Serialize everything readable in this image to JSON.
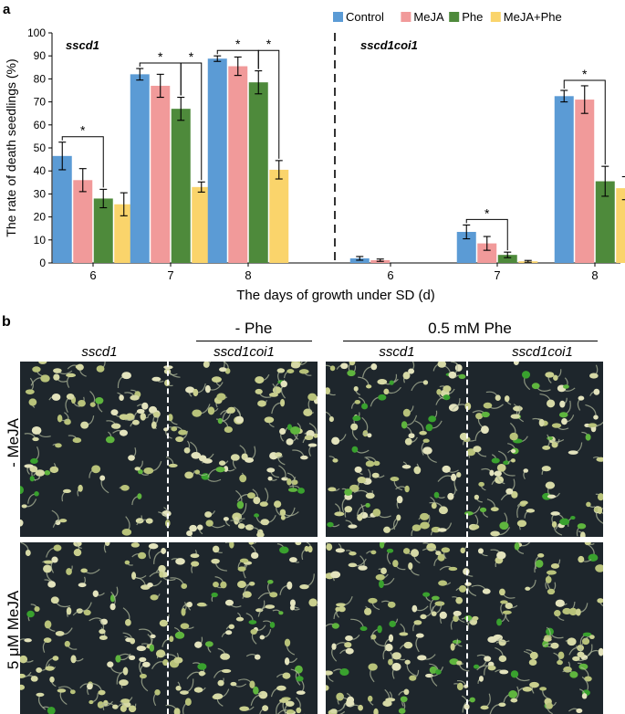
{
  "panels": {
    "a": "a",
    "b": "b"
  },
  "chart_data": {
    "type": "bar",
    "ylabel": "The rate of death seedlings (%)",
    "xlabel": "The days of growth under SD (d)",
    "ylim": [
      0,
      100
    ],
    "yticks": [
      0,
      10,
      20,
      30,
      40,
      50,
      60,
      70,
      80,
      90,
      100
    ],
    "legend_position": "top-right",
    "series_colors": {
      "Control": "#5b9bd5",
      "MeJA": "#f19a9a",
      "Phe": "#4e8a3b",
      "MeJA+Phe": "#fad46b"
    },
    "groups": [
      {
        "genotype": "sscd1",
        "categories": [
          "6",
          "7",
          "8"
        ],
        "series": [
          {
            "name": "Control",
            "values": [
              46.5,
              82,
              88.8
            ],
            "errors": [
              6,
              2.5,
              1.2
            ]
          },
          {
            "name": "MeJA",
            "values": [
              36,
              77,
              85.5
            ],
            "errors": [
              5,
              5,
              4
            ]
          },
          {
            "name": "Phe",
            "values": [
              28,
              67,
              78.5
            ],
            "errors": [
              4,
              5,
              5
            ]
          },
          {
            "name": "MeJA+Phe",
            "values": [
              25.5,
              33,
              40.5
            ],
            "errors": [
              5,
              2.2,
              4
            ]
          }
        ],
        "significance": [
          {
            "category": "6",
            "from": "Control",
            "to": "Phe",
            "label": "*"
          },
          {
            "category": "7",
            "from": "Control",
            "to": "Phe",
            "label": "*"
          },
          {
            "category": "7",
            "from": "Phe",
            "to": "MeJA+Phe",
            "label": "*"
          },
          {
            "category": "8",
            "from": "Control",
            "to": "Phe",
            "label": "*"
          },
          {
            "category": "8",
            "from": "Phe",
            "to": "MeJA+Phe",
            "label": "*"
          }
        ]
      },
      {
        "genotype": "sscd1coi1",
        "categories": [
          "6",
          "7",
          "8"
        ],
        "series": [
          {
            "name": "Control",
            "values": [
              2,
              13.5,
              72.5
            ],
            "errors": [
              0.8,
              3,
              2.5
            ]
          },
          {
            "name": "MeJA",
            "values": [
              1.2,
              8.5,
              71
            ],
            "errors": [
              0.5,
              3,
              6
            ]
          },
          {
            "name": "Phe",
            "values": [
              0,
              3.5,
              35.5
            ],
            "errors": [
              0,
              1.2,
              6.5
            ]
          },
          {
            "name": "MeJA+Phe",
            "values": [
              0,
              0.7,
              32.5
            ],
            "errors": [
              0,
              0.4,
              5
            ]
          }
        ],
        "significance": [
          {
            "category": "7",
            "from": "Control",
            "to": "Phe",
            "label": "*"
          },
          {
            "category": "8",
            "from": "Control",
            "to": "Phe",
            "label": "*"
          }
        ]
      }
    ]
  },
  "panel_b": {
    "conditions": [
      "- Phe",
      "0.5 mM  Phe"
    ],
    "genotypes": [
      "sscd1",
      "sscd1coi1",
      "sscd1",
      "sscd1coi1"
    ],
    "rows": [
      "- MeJA",
      "5 μM  MeJA"
    ],
    "photo_background": "#1e262c",
    "photo_divider_color": "#ffffff",
    "seedling_colors": [
      "#d6d9a6",
      "#c9cf8e",
      "#e3e3bd",
      "#b8c27a",
      "#39a12e",
      "#5fb53e"
    ]
  }
}
